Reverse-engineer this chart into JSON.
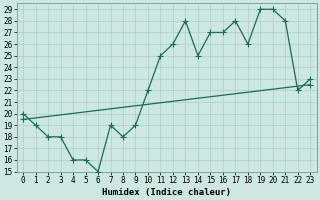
{
  "xlabel": "Humidex (Indice chaleur)",
  "bg_color": "#cce8e0",
  "line_color": "#1a6b5a",
  "xlim": [
    -0.5,
    23.5
  ],
  "ylim": [
    15,
    29.5
  ],
  "yticks": [
    15,
    16,
    17,
    18,
    19,
    20,
    21,
    22,
    23,
    24,
    25,
    26,
    27,
    28,
    29
  ],
  "xticks": [
    0,
    1,
    2,
    3,
    4,
    5,
    6,
    7,
    8,
    9,
    10,
    11,
    12,
    13,
    14,
    15,
    16,
    17,
    18,
    19,
    20,
    21,
    22,
    23
  ],
  "line1_x": [
    0,
    1,
    2,
    3,
    4,
    5,
    6,
    7,
    8,
    9,
    10,
    11,
    12,
    13,
    14,
    15,
    16,
    17,
    18,
    19,
    20,
    21,
    22,
    23
  ],
  "line1_y": [
    20,
    19,
    18,
    18,
    16,
    16,
    15,
    19,
    18,
    19,
    22,
    25,
    26,
    28,
    25,
    27,
    27,
    28,
    26,
    29,
    29,
    28,
    22,
    23
  ],
  "line2_x": [
    0,
    23
  ],
  "line2_y": [
    19.5,
    22.5
  ],
  "grid_color": "#aacfc8",
  "marker_size": 2.5,
  "tick_fontsize": 5.5,
  "xlabel_fontsize": 6.5
}
